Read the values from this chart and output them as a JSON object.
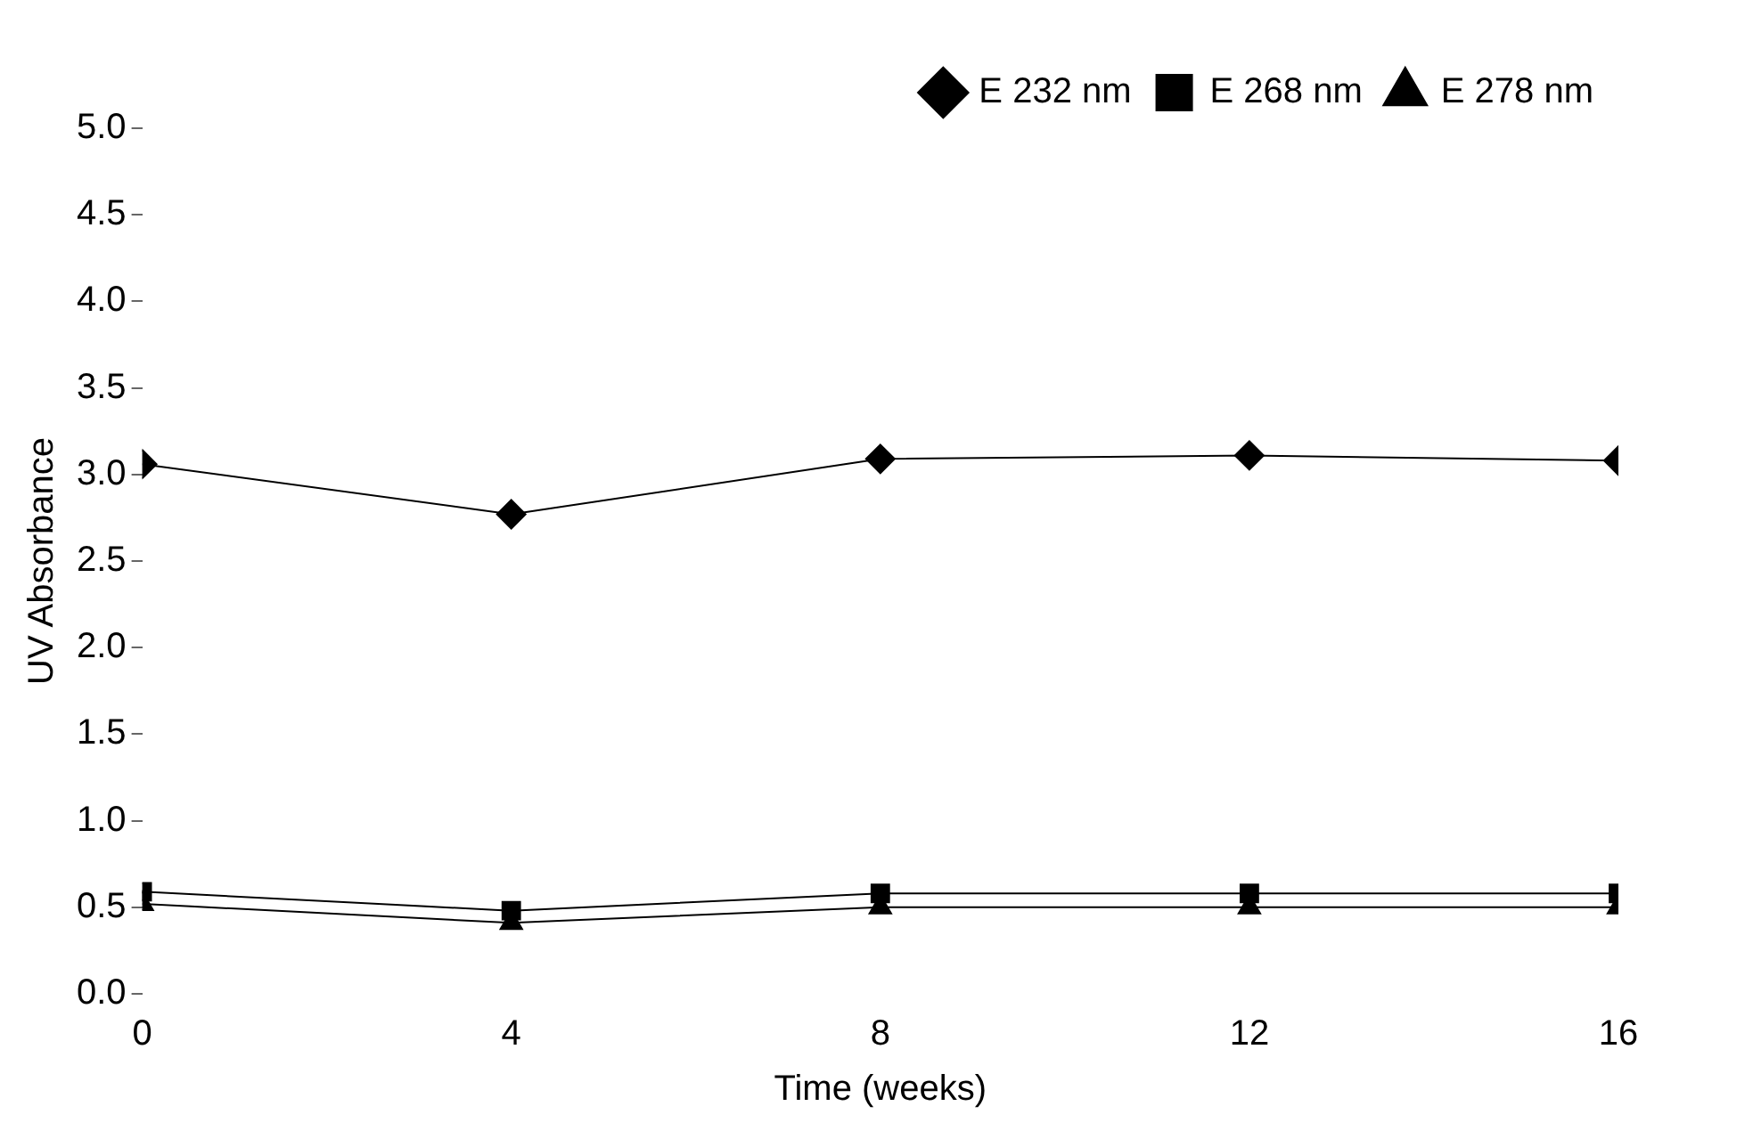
{
  "chart_data": {
    "type": "line",
    "xlabel": "Time (weeks)",
    "ylabel": "UV Absorbance",
    "x": [
      0,
      4,
      8,
      12,
      16
    ],
    "xlim": [
      0,
      16
    ],
    "xticks": [
      0,
      4,
      8,
      12,
      16
    ],
    "ylim": [
      0,
      5
    ],
    "yticks": [
      {
        "value": 0,
        "label": "0.0"
      },
      0.5,
      {
        "value": 1,
        "label": "1.0"
      },
      1.5,
      {
        "value": 2,
        "label": "2.0"
      },
      2.5,
      {
        "value": 3,
        "label": "3.0"
      },
      3.5,
      {
        "value": 4,
        "label": "4.0"
      },
      4.5,
      {
        "value": 5,
        "label": "5.0"
      }
    ],
    "grid": false,
    "legend": "top right",
    "line_style": "solid",
    "series": [
      {
        "name": "E 232 nm",
        "color": "#000000",
        "marker": "diamond",
        "values": [
          3.06,
          2.77,
          3.09,
          3.11,
          3.08
        ]
      },
      {
        "name": "E 268 nm",
        "color": "#000000",
        "marker": "square",
        "values": [
          0.59,
          0.48,
          0.58,
          0.58,
          0.58
        ]
      },
      {
        "name": "E 278 nm",
        "color": "#000000",
        "marker": "triangle",
        "values": [
          0.52,
          0.41,
          0.5,
          0.5,
          0.5
        ]
      }
    ]
  }
}
